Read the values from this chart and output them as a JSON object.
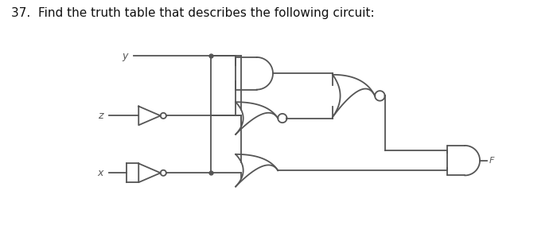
{
  "title": "37.  Find the truth table that describes the following circuit:",
  "title_fontsize": 11,
  "bg_color": "#ffffff",
  "line_color": "#555555",
  "line_width": 1.3,
  "fig_width": 7.0,
  "fig_height": 2.84,
  "dpi": 100,
  "xlim": [
    0,
    10
  ],
  "ylim": [
    0,
    4
  ]
}
